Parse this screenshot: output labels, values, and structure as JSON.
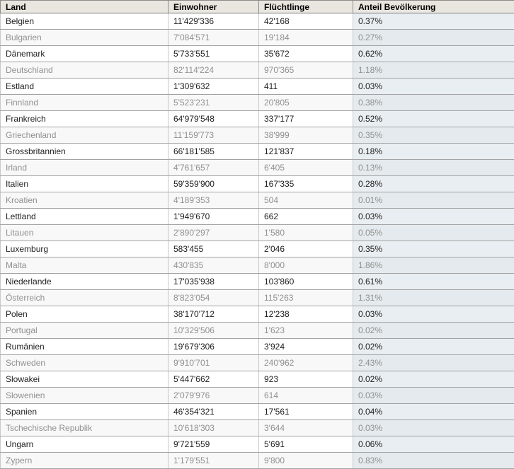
{
  "chart_data": {
    "type": "table",
    "columns": [
      "Land",
      "Einwohner",
      "Flüchtlinge",
      "Anteil Bevölkerung"
    ],
    "rows": [
      [
        "Belgien",
        "11'429'336",
        "42'168",
        "0.37%"
      ],
      [
        "Bulgarien",
        "7'084'571",
        "19'184",
        "0.27%"
      ],
      [
        "Dänemark",
        "5'733'551",
        "35'672",
        "0.62%"
      ],
      [
        "Deutschland",
        "82'114'224",
        "970'365",
        "1.18%"
      ],
      [
        "Estland",
        "1'309'632",
        "411",
        "0.03%"
      ],
      [
        "Finnland",
        "5'523'231",
        "20'805",
        "0.38%"
      ],
      [
        "Frankreich",
        "64'979'548",
        "337'177",
        "0.52%"
      ],
      [
        "Griechenland",
        "11'159'773",
        "38'999",
        "0.35%"
      ],
      [
        "Grossbritannien",
        "66'181'585",
        "121'837",
        "0.18%"
      ],
      [
        "Irland",
        "4'761'657",
        "6'405",
        "0.13%"
      ],
      [
        "Italien",
        "59'359'900",
        "167'335",
        "0.28%"
      ],
      [
        "Kroatien",
        "4'189'353",
        "504",
        "0.01%"
      ],
      [
        "Lettland",
        "1'949'670",
        "662",
        "0.03%"
      ],
      [
        "Litauen",
        "2'890'297",
        "1'580",
        "0.05%"
      ],
      [
        "Luxemburg",
        "583'455",
        "2'046",
        "0.35%"
      ],
      [
        "Malta",
        "430'835",
        "8'000",
        "1.86%"
      ],
      [
        "Niederlande",
        "17'035'938",
        "103'860",
        "0.61%"
      ],
      [
        "Österreich",
        "8'823'054",
        "115'263",
        "1.31%"
      ],
      [
        "Polen",
        "38'170'712",
        "12'238",
        "0.03%"
      ],
      [
        "Portugal",
        "10'329'506",
        "1'623",
        "0.02%"
      ],
      [
        "Rumänien",
        "19'679'306",
        "3'924",
        "0.02%"
      ],
      [
        "Schweden",
        "9'910'701",
        "240'962",
        "2.43%"
      ],
      [
        "Slowakei",
        "5'447'662",
        "923",
        "0.02%"
      ],
      [
        "Slowenien",
        "2'079'976",
        "614",
        "0.03%"
      ],
      [
        "Spanien",
        "46'354'321",
        "17'561",
        "0.04%"
      ],
      [
        "Tschechische Republik",
        "10'618'303",
        "3'644",
        "0.03%"
      ],
      [
        "Ungarn",
        "9'721'559",
        "5'691",
        "0.06%"
      ],
      [
        "Zypern",
        "1'179'551",
        "9'800",
        "0.83%"
      ]
    ]
  },
  "colors": {
    "header_bg": "#e9e6e0",
    "header_border": "#8b8b8b",
    "row_border_h": "#a3a3a3",
    "row_border_v": "#c9c9c9",
    "row_a_bg": "#ffffff",
    "row_b_bg": "#f8f8f8",
    "row_a_text": "#1e1e1e",
    "row_b_text": "#909090",
    "pct_a_bg": "#e9eef2",
    "pct_b_bg": "#e4eaee",
    "header_text": "#000000"
  }
}
